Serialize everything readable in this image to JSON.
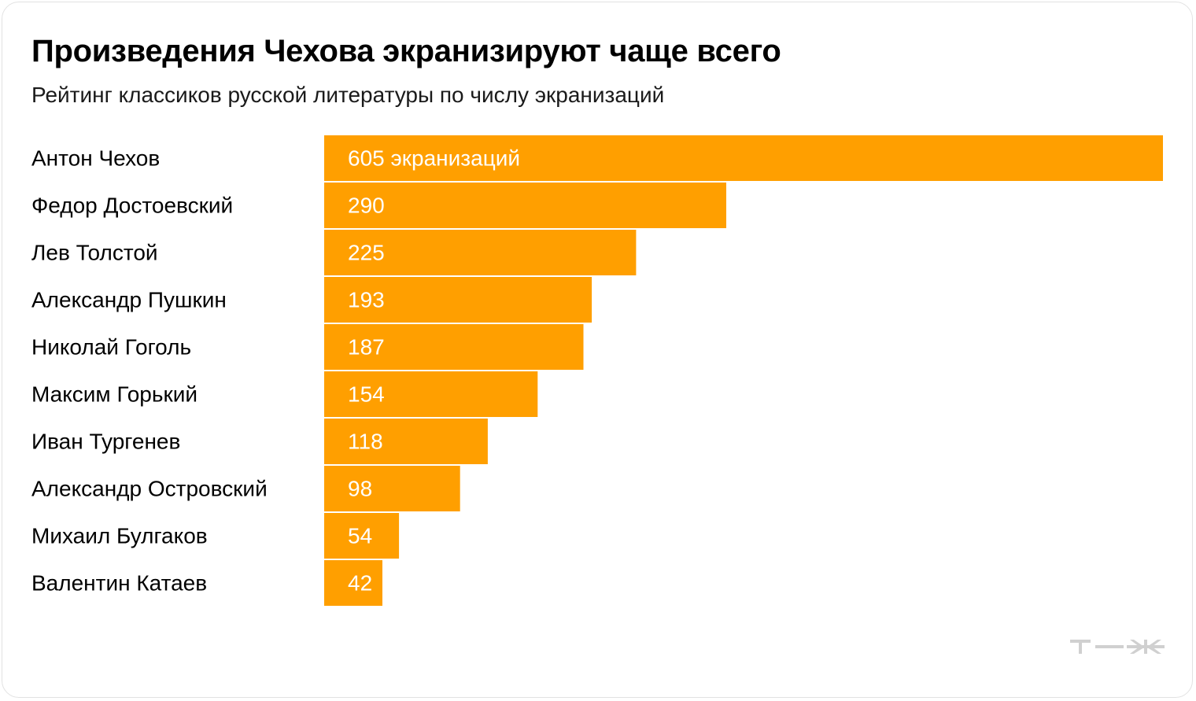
{
  "title": "Произведения Чехова экранизируют чаще всего",
  "subtitle": "Рейтинг классиков русской литературы по числу экранизаций",
  "logo_text": "т—ж",
  "colors": {
    "bar": "#ff9f00",
    "text": "#000000",
    "bar_label": "#ffffff",
    "logo": "#d0d0d0"
  },
  "chart_data": {
    "type": "bar",
    "orientation": "horizontal",
    "categories": [
      "Антон Чехов",
      "Федор Достоевский",
      "Лев Толстой",
      "Александр Пушкин",
      "Николай Гоголь",
      "Максим Горький",
      "Иван Тургенев",
      "Александр Островский",
      "Михаил Булгаков",
      "Валентин Катаев"
    ],
    "values": [
      605,
      290,
      225,
      193,
      187,
      154,
      118,
      98,
      54,
      42
    ],
    "data_labels": [
      "605 экранизаций",
      "290",
      "225",
      "193",
      "187",
      "154",
      "118",
      "98",
      "54",
      "42"
    ],
    "xlim": [
      0,
      605
    ],
    "grid": false,
    "legend": "none"
  }
}
